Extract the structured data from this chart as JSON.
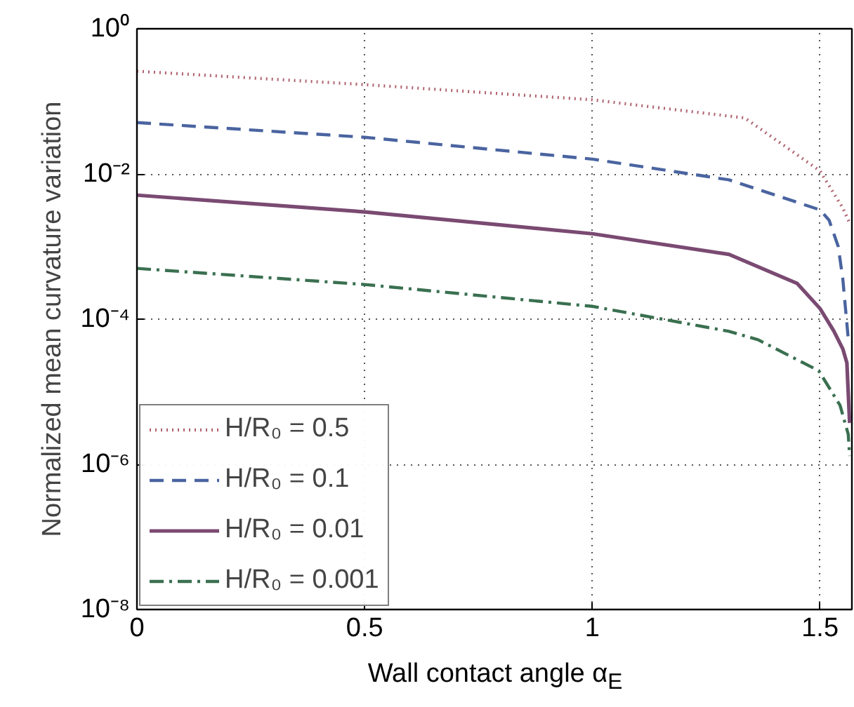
{
  "chart_data": {
    "type": "line",
    "xlabel": "Wall contact angle α$_{E}$",
    "ylabel": "Normalized mean curvature variation",
    "log": "y",
    "xlim": [
      0,
      1.57
    ],
    "ylim": [
      1e-08,
      1
    ],
    "xticks": [
      0,
      0.5,
      1,
      1.5
    ],
    "yticks": [
      {
        "value": 1e-08,
        "label": "10⁻⁸"
      },
      {
        "value": 1e-06,
        "label": "10⁻⁶"
      },
      {
        "value": 0.0001,
        "label": "10⁻⁴"
      },
      {
        "value": 0.01,
        "label": "10⁻²"
      },
      {
        "value": 1,
        "label": "10⁰"
      }
    ],
    "grid": true,
    "legend": "bottom left",
    "marker": "none",
    "series": [
      {
        "name": "H/R₀ = 0.5",
        "color": "#b06470",
        "line_style": "dotted",
        "x": [
          0,
          0.5,
          1.0,
          1.335,
          1.5,
          1.55,
          1.565
        ],
        "values": [
          0.26,
          0.17,
          0.105,
          0.059,
          0.011,
          0.0034,
          0.0021
        ]
      },
      {
        "name": "H/R₀ = 0.1",
        "color": "#4a64a0",
        "line_style": "dashed",
        "x": [
          0,
          0.5,
          1.0,
          1.3,
          1.5,
          1.52,
          1.54,
          1.55,
          1.562
        ],
        "values": [
          0.051,
          0.032,
          0.016,
          0.0083,
          0.0032,
          0.0023,
          0.001,
          0.00036,
          5.4e-05
        ]
      },
      {
        "name": "H/R₀ = 0.01",
        "color": "#7a4a72",
        "line_style": "solid",
        "x": [
          0,
          0.5,
          1.0,
          1.3,
          1.45,
          1.5,
          1.53,
          1.55,
          1.559,
          1.565
        ],
        "values": [
          0.0051,
          0.003,
          0.0015,
          0.00078,
          0.00031,
          0.00014,
          6.9e-05,
          3.9e-05,
          2.5e-05,
          3.7e-06
        ]
      },
      {
        "name": "H/R₀ = 0.001",
        "color": "#3a7050",
        "line_style": "dashdot",
        "x": [
          0,
          0.5,
          1.0,
          1.3,
          1.364,
          1.497,
          1.544,
          1.562,
          1.565
        ],
        "values": [
          0.0005,
          0.0003,
          0.00015,
          6.8e-05,
          5.2e-05,
          1.95e-05,
          6.5e-06,
          2.6e-06,
          1.3e-06
        ]
      }
    ]
  }
}
